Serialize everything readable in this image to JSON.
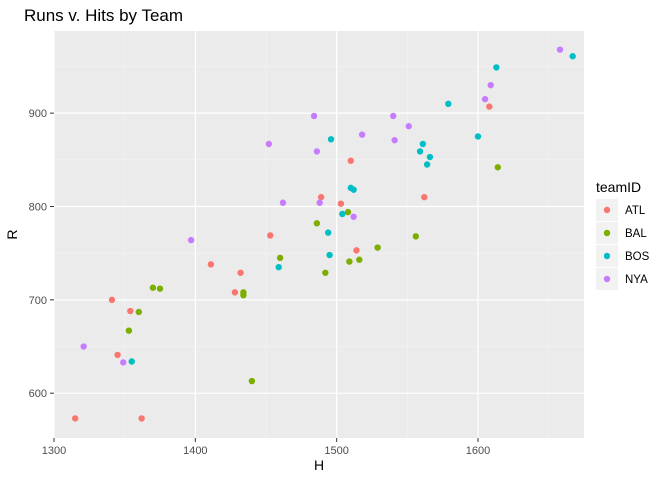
{
  "chart_data": {
    "type": "scatter",
    "title": "Runs v. Hits by Team",
    "xlabel": "H",
    "ylabel": "R",
    "xlim": [
      1300,
      1675
    ],
    "ylim": [
      552,
      988
    ],
    "x_ticks": [
      1300,
      1400,
      1500,
      1600
    ],
    "x_tick_labels": [
      "1300",
      "1400",
      "1500",
      "1600"
    ],
    "y_ticks": [
      600,
      700,
      800,
      900
    ],
    "y_tick_labels": [
      "600",
      "700",
      "800",
      "900"
    ],
    "grid": true,
    "legend": {
      "title": "teamID",
      "position": "right"
    },
    "series": [
      {
        "name": "ATL",
        "color": "#F8766D",
        "points": [
          [
            1315,
            573
          ],
          [
            1341,
            700
          ],
          [
            1345,
            641
          ],
          [
            1354,
            688
          ],
          [
            1362,
            573
          ],
          [
            1411,
            738
          ],
          [
            1428,
            708
          ],
          [
            1432,
            729
          ],
          [
            1453,
            769
          ],
          [
            1489,
            810
          ],
          [
            1503,
            803
          ],
          [
            1510,
            849
          ],
          [
            1514,
            753
          ],
          [
            1562,
            810
          ],
          [
            1608,
            907
          ]
        ]
      },
      {
        "name": "BAL",
        "color": "#7CAE00",
        "points": [
          [
            1353,
            667
          ],
          [
            1360,
            687
          ],
          [
            1370,
            713
          ],
          [
            1375,
            712
          ],
          [
            1434,
            708
          ],
          [
            1434,
            705
          ],
          [
            1440,
            613
          ],
          [
            1460,
            745
          ],
          [
            1486,
            782
          ],
          [
            1492,
            729
          ],
          [
            1508,
            794
          ],
          [
            1509,
            741
          ],
          [
            1516,
            743
          ],
          [
            1529,
            756
          ],
          [
            1556,
            768
          ],
          [
            1614,
            842
          ]
        ]
      },
      {
        "name": "BOS",
        "color": "#00BFC4",
        "points": [
          [
            1355,
            634
          ],
          [
            1459,
            735
          ],
          [
            1494,
            772
          ],
          [
            1495,
            748
          ],
          [
            1496,
            872
          ],
          [
            1504,
            792
          ],
          [
            1510,
            820
          ],
          [
            1512,
            818
          ],
          [
            1559,
            859
          ],
          [
            1561,
            867
          ],
          [
            1564,
            845
          ],
          [
            1566,
            853
          ],
          [
            1579,
            910
          ],
          [
            1600,
            875
          ],
          [
            1613,
            949
          ],
          [
            1667,
            961
          ]
        ]
      },
      {
        "name": "NYA",
        "color": "#C77CFF",
        "points": [
          [
            1321,
            650
          ],
          [
            1349,
            633
          ],
          [
            1397,
            764
          ],
          [
            1452,
            867
          ],
          [
            1462,
            804
          ],
          [
            1484,
            897
          ],
          [
            1486,
            859
          ],
          [
            1488,
            804
          ],
          [
            1512,
            789
          ],
          [
            1518,
            877
          ],
          [
            1540,
            897
          ],
          [
            1541,
            871
          ],
          [
            1551,
            886
          ],
          [
            1605,
            915
          ],
          [
            1609,
            930
          ],
          [
            1658,
            968
          ]
        ]
      }
    ]
  }
}
